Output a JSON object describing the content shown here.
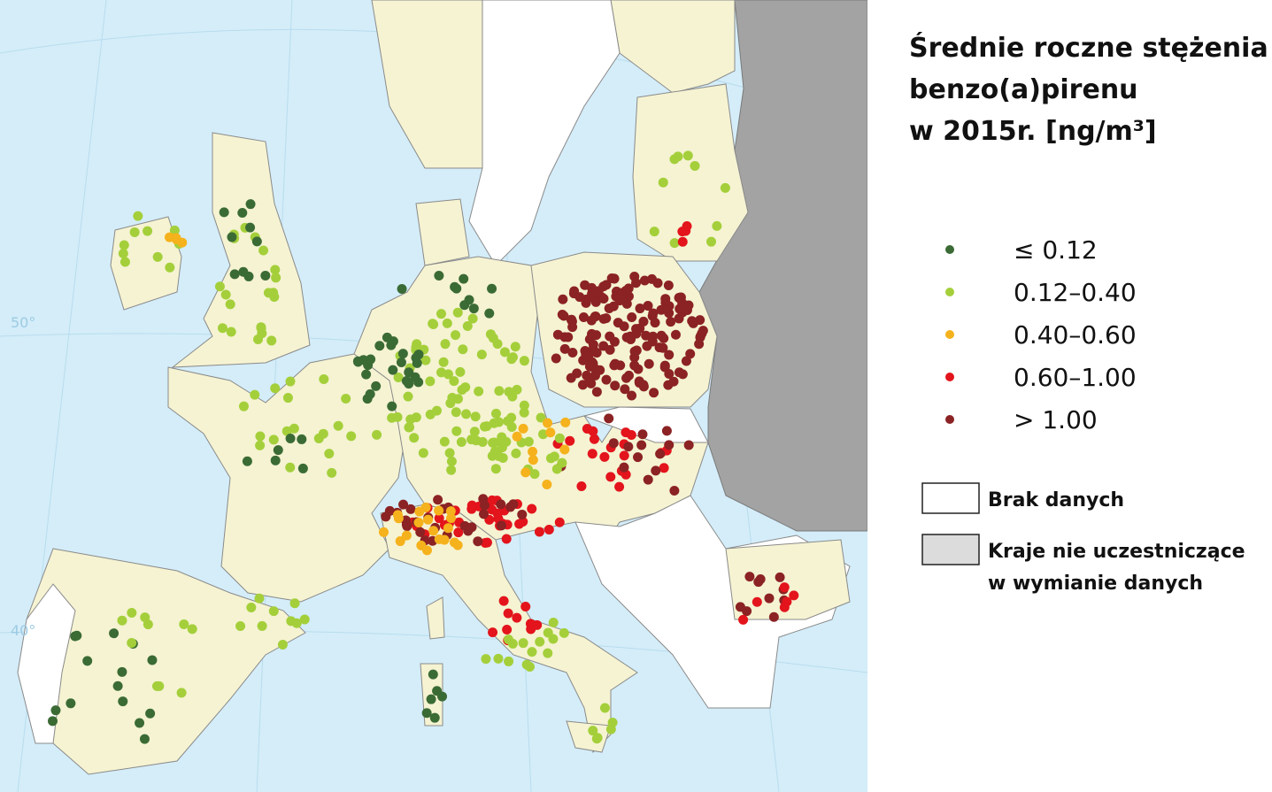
{
  "title": {
    "lines": [
      "Średnie roczne stężenia",
      "benzo(a)pirenu",
      "w 2015r. [ng/m³]"
    ]
  },
  "graticule_labels": [
    "50°",
    "40°"
  ],
  "legend": {
    "items": [
      {
        "label": "≤ 0.12",
        "color": "#3b6b35"
      },
      {
        "label": "0.12–0.40",
        "color": "#a4cf3a"
      },
      {
        "label": "0.40–0.60",
        "color": "#f5b21c"
      },
      {
        "label": "0.60–1.00",
        "color": "#e3141c"
      },
      {
        "label": "> 1.00",
        "color": "#8b2224"
      }
    ],
    "boxes": [
      {
        "lines": [
          "Brak danych"
        ],
        "color": "#ffffff"
      },
      {
        "lines": [
          "Kraje  nie  uczestniczące",
          "w wymianie  danych"
        ],
        "color": "#dcdcdc"
      }
    ]
  }
}
